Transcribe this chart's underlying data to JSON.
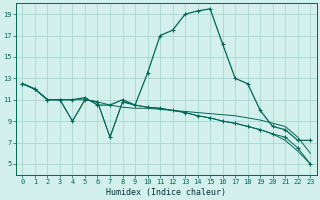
{
  "xlabel": "Humidex (Indice chaleur)",
  "background_color": "#d4f0ec",
  "grid_color": "#a8d8d4",
  "line_color": "#006655",
  "xlim": [
    -0.5,
    23.5
  ],
  "ylim": [
    4,
    20
  ],
  "yticks": [
    5,
    7,
    9,
    11,
    13,
    15,
    17,
    19
  ],
  "xticks": [
    0,
    1,
    2,
    3,
    4,
    5,
    6,
    7,
    8,
    9,
    10,
    11,
    12,
    13,
    14,
    15,
    16,
    17,
    18,
    19,
    20,
    21,
    22,
    23
  ],
  "series": [
    [
      12.5,
      12.0,
      11.0,
      11.0,
      11.0,
      11.2,
      10.5,
      10.5,
      11.0,
      10.5,
      13.5,
      17.0,
      17.5,
      19.0,
      19.3,
      19.5,
      16.2,
      13.0,
      12.5,
      10.0,
      8.5,
      8.2,
      7.2,
      7.2
    ],
    [
      12.5,
      12.0,
      11.0,
      11.0,
      11.0,
      11.0,
      10.8,
      10.5,
      10.3,
      10.2,
      10.2,
      10.1,
      10.0,
      9.9,
      9.8,
      9.7,
      9.6,
      9.5,
      9.3,
      9.1,
      8.8,
      8.5,
      7.5,
      6.0
    ],
    [
      12.5,
      12.0,
      11.0,
      11.0,
      9.0,
      11.0,
      10.8,
      7.5,
      10.8,
      10.5,
      10.3,
      10.2,
      10.0,
      9.8,
      9.5,
      9.3,
      9.0,
      8.8,
      8.5,
      8.2,
      7.8,
      7.5,
      6.5,
      5.0
    ],
    [
      12.5,
      12.0,
      11.0,
      11.0,
      9.0,
      11.0,
      10.8,
      7.5,
      10.8,
      10.5,
      10.3,
      10.2,
      10.0,
      9.8,
      9.5,
      9.3,
      9.0,
      8.8,
      8.5,
      8.2,
      7.8,
      7.2,
      6.2,
      5.0
    ]
  ]
}
